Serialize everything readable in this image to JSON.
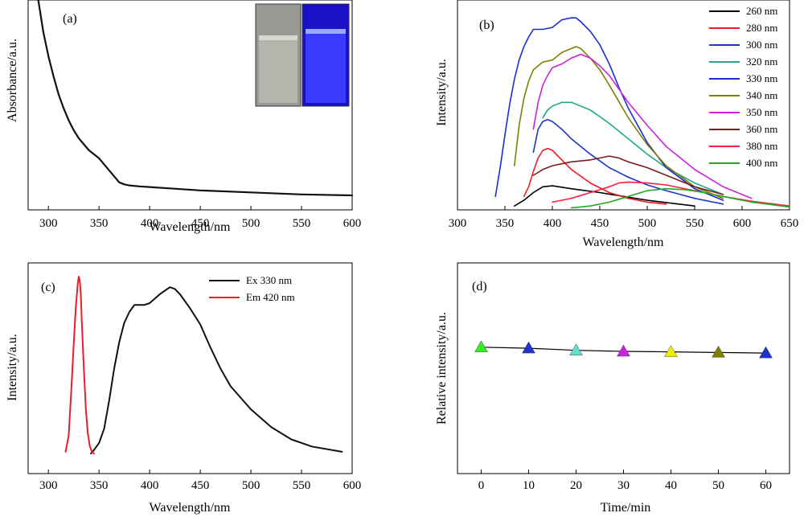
{
  "chart_data": [
    {
      "panel": "(a)",
      "type": "line",
      "xlabel": "Wavelength/nm",
      "ylabel": "Absorbance/a.u.",
      "xlim": [
        280,
        600
      ],
      "ylim": [
        0,
        1
      ],
      "xticks": [
        300,
        350,
        400,
        450,
        500,
        550,
        600
      ],
      "yticks_shown": false,
      "inset": "photo of two vials: left under daylight (clear/grey), right under UV light (bright blue emission)",
      "series": [
        {
          "color": "#111111",
          "x": [
            290,
            295,
            300,
            305,
            310,
            315,
            320,
            325,
            330,
            335,
            340,
            345,
            350,
            355,
            360,
            365,
            370,
            375,
            380,
            390,
            400,
            420,
            450,
            500,
            550,
            600
          ],
          "y": [
            1.0,
            0.84,
            0.72,
            0.62,
            0.53,
            0.46,
            0.4,
            0.35,
            0.31,
            0.28,
            0.25,
            0.23,
            0.21,
            0.18,
            0.15,
            0.12,
            0.09,
            0.08,
            0.075,
            0.07,
            0.067,
            0.06,
            0.05,
            0.04,
            0.03,
            0.025
          ]
        }
      ]
    },
    {
      "panel": "(b)",
      "type": "line",
      "xlabel": "Wavelength/nm",
      "ylabel": "Intensity/a.u.",
      "xlim": [
        300,
        650
      ],
      "ylim": [
        0,
        1
      ],
      "xticks": [
        300,
        350,
        400,
        450,
        500,
        550,
        600,
        650
      ],
      "yticks_shown": false,
      "legend_position": "top-right",
      "series": [
        {
          "name": "260 nm",
          "color": "#000000",
          "x": [
            360,
            370,
            380,
            390,
            400,
            420,
            450,
            500,
            550
          ],
          "y": [
            0.02,
            0.05,
            0.09,
            0.12,
            0.125,
            0.11,
            0.09,
            0.05,
            0.02
          ]
        },
        {
          "name": "280 nm",
          "color": "#ee1c25",
          "x": [
            370,
            375,
            380,
            385,
            390,
            395,
            400,
            410,
            420,
            440,
            460,
            480,
            500,
            520
          ],
          "y": [
            0.07,
            0.12,
            0.2,
            0.27,
            0.31,
            0.32,
            0.31,
            0.26,
            0.21,
            0.14,
            0.09,
            0.06,
            0.04,
            0.03
          ]
        },
        {
          "name": "300 nm",
          "color": "#2233cc",
          "x": [
            380,
            385,
            390,
            395,
            400,
            410,
            420,
            440,
            460,
            480,
            500,
            520,
            550,
            580
          ],
          "y": [
            0.3,
            0.42,
            0.46,
            0.47,
            0.46,
            0.42,
            0.37,
            0.29,
            0.22,
            0.17,
            0.13,
            0.1,
            0.06,
            0.03
          ]
        },
        {
          "name": "320 nm",
          "color": "#1faa88",
          "x": [
            390,
            395,
            400,
            410,
            420,
            440,
            460,
            480,
            500,
            520,
            550,
            580
          ],
          "y": [
            0.48,
            0.52,
            0.54,
            0.56,
            0.56,
            0.52,
            0.45,
            0.37,
            0.29,
            0.22,
            0.14,
            0.08
          ]
        },
        {
          "name": "330 nm",
          "color": "#1a2ed8",
          "x": [
            340,
            345,
            350,
            355,
            360,
            365,
            370,
            375,
            380,
            390,
            400,
            410,
            420,
            425,
            430,
            440,
            450,
            460,
            470,
            480,
            500,
            520,
            550,
            580
          ],
          "y": [
            0.07,
            0.22,
            0.39,
            0.55,
            0.68,
            0.78,
            0.85,
            0.9,
            0.94,
            0.94,
            0.95,
            0.99,
            1.0,
            1.0,
            0.98,
            0.93,
            0.86,
            0.76,
            0.64,
            0.53,
            0.35,
            0.22,
            0.11,
            0.05
          ]
        },
        {
          "name": "340 nm",
          "color": "#808000",
          "x": [
            360,
            365,
            370,
            375,
            380,
            390,
            400,
            410,
            420,
            425,
            430,
            440,
            450,
            460,
            480,
            500,
            520,
            550,
            580
          ],
          "y": [
            0.23,
            0.44,
            0.58,
            0.67,
            0.73,
            0.77,
            0.78,
            0.82,
            0.84,
            0.85,
            0.84,
            0.79,
            0.73,
            0.65,
            0.48,
            0.34,
            0.23,
            0.12,
            0.06
          ]
        },
        {
          "name": "350 nm",
          "color": "#cc22dd",
          "x": [
            380,
            385,
            390,
            395,
            400,
            410,
            420,
            430,
            435,
            440,
            450,
            460,
            480,
            500,
            520,
            550,
            580,
            610
          ],
          "y": [
            0.42,
            0.56,
            0.65,
            0.7,
            0.74,
            0.76,
            0.79,
            0.81,
            0.8,
            0.79,
            0.75,
            0.7,
            0.56,
            0.44,
            0.33,
            0.21,
            0.12,
            0.06
          ]
        },
        {
          "name": "360 nm",
          "color": "#7a1e1e",
          "x": [
            380,
            390,
            400,
            410,
            420,
            440,
            460,
            470,
            480,
            500,
            520,
            550,
            580
          ],
          "y": [
            0.18,
            0.21,
            0.23,
            0.24,
            0.25,
            0.26,
            0.28,
            0.27,
            0.25,
            0.22,
            0.18,
            0.12,
            0.08
          ]
        },
        {
          "name": "380 nm",
          "color": "#ff2040",
          "x": [
            400,
            420,
            440,
            460,
            470,
            480,
            500,
            520,
            550,
            580,
            610,
            650
          ],
          "y": [
            0.04,
            0.06,
            0.09,
            0.12,
            0.14,
            0.145,
            0.14,
            0.13,
            0.1,
            0.07,
            0.045,
            0.02
          ]
        },
        {
          "name": "400 nm",
          "color": "#22aa22",
          "x": [
            420,
            440,
            460,
            480,
            500,
            520,
            540,
            560,
            580,
            610,
            650
          ],
          "y": [
            0.01,
            0.02,
            0.04,
            0.07,
            0.1,
            0.11,
            0.105,
            0.09,
            0.07,
            0.04,
            0.015
          ]
        }
      ]
    },
    {
      "panel": "(c)",
      "type": "line",
      "xlabel": "Wavelength/nm",
      "ylabel": "Intensity/a.u.",
      "xlim": [
        280,
        600
      ],
      "ylim": [
        0,
        1
      ],
      "xticks": [
        300,
        350,
        400,
        450,
        500,
        550,
        600
      ],
      "yticks_shown": false,
      "legend_position": "top-right",
      "series": [
        {
          "name": "Ex 330 nm",
          "color": "#111111",
          "x": [
            342,
            345,
            350,
            355,
            360,
            365,
            370,
            375,
            380,
            385,
            390,
            395,
            400,
            410,
            415,
            420,
            425,
            430,
            440,
            450,
            460,
            470,
            480,
            500,
            520,
            540,
            560,
            590
          ],
          "y": [
            0.0,
            0.02,
            0.06,
            0.14,
            0.3,
            0.48,
            0.63,
            0.74,
            0.8,
            0.84,
            0.84,
            0.84,
            0.85,
            0.9,
            0.92,
            0.94,
            0.93,
            0.9,
            0.82,
            0.73,
            0.6,
            0.48,
            0.38,
            0.25,
            0.15,
            0.08,
            0.04,
            0.01
          ]
        },
        {
          "name": "Em 420 nm",
          "color": "#ee1c25",
          "x": [
            317,
            320,
            323,
            325,
            327,
            329,
            330,
            331,
            332,
            333,
            335,
            337,
            339,
            341,
            343,
            345
          ],
          "y": [
            0.01,
            0.1,
            0.4,
            0.62,
            0.82,
            0.96,
            1.0,
            0.98,
            0.9,
            0.75,
            0.48,
            0.25,
            0.11,
            0.04,
            0.01,
            0.0
          ]
        }
      ]
    },
    {
      "panel": "(d)",
      "type": "scatter",
      "xlabel": "Time/min",
      "ylabel": "Relative intensity/a.u.",
      "xlim": [
        -5,
        65
      ],
      "ylim": [
        0,
        1
      ],
      "xticks": [
        0,
        10,
        20,
        30,
        40,
        50,
        60
      ],
      "yticks_shown": false,
      "marker": "triangle",
      "x": [
        0,
        10,
        20,
        30,
        40,
        50,
        60
      ],
      "y": [
        0.6,
        0.595,
        0.585,
        0.58,
        0.578,
        0.575,
        0.572
      ],
      "marker_colors": [
        "#33ee22",
        "#2233cc",
        "#66ddcc",
        "#cc22dd",
        "#eeee00",
        "#808000",
        "#2233cc"
      ]
    }
  ]
}
